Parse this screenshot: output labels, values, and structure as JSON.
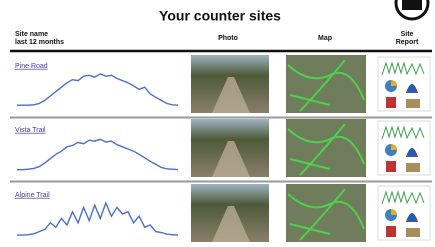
{
  "header": {
    "title": "Your counter sites"
  },
  "table": {
    "columns": [
      [
        "Site name",
        "last 12 months"
      ],
      [
        "Photo"
      ],
      [
        "Map"
      ],
      [
        "Site",
        "Report"
      ]
    ],
    "rows": [
      {
        "name": "Pine Road",
        "values": [
          4,
          4,
          4,
          5,
          8,
          15,
          25,
          35,
          45,
          55,
          62,
          60,
          70,
          72,
          68,
          75,
          70,
          72,
          65,
          60,
          55,
          48,
          40,
          45,
          30,
          22,
          15,
          8,
          5,
          4
        ]
      },
      {
        "name": "Vista Trail",
        "values": [
          3,
          3,
          4,
          6,
          10,
          18,
          28,
          38,
          45,
          55,
          58,
          65,
          62,
          70,
          68,
          72,
          66,
          68,
          60,
          55,
          50,
          45,
          38,
          30,
          22,
          15,
          8,
          5,
          4,
          3
        ]
      },
      {
        "name": "Alpine Trail",
        "values": [
          2,
          2,
          3,
          5,
          10,
          15,
          30,
          20,
          40,
          25,
          55,
          30,
          65,
          35,
          70,
          40,
          75,
          45,
          65,
          50,
          55,
          30,
          45,
          20,
          25,
          10,
          8,
          4,
          3,
          2
        ]
      }
    ]
  }
}
